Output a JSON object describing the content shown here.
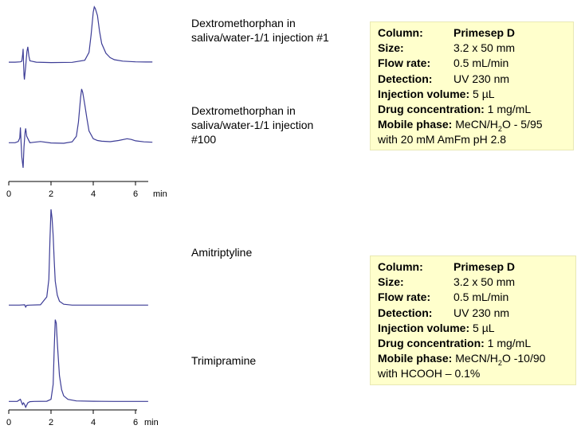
{
  "chart_data": [
    {
      "type": "line",
      "xlim": [
        0,
        6.8
      ],
      "xticks": [
        "0",
        "2",
        "4",
        "6"
      ],
      "xlabel": "min",
      "series": [
        {
          "name": "Dextromethorphan in saliva/water-1/1 injection #1",
          "x": [
            0,
            0.3,
            0.55,
            0.62,
            0.66,
            0.68,
            0.7,
            0.72,
            0.74,
            0.8,
            0.86,
            0.9,
            0.95,
            1.0,
            1.3,
            2.0,
            3.0,
            3.6,
            3.8,
            3.9,
            4.0,
            4.05,
            4.1,
            4.2,
            4.3,
            4.4,
            4.6,
            4.8,
            5.0,
            5.4,
            6.0,
            6.5,
            6.8
          ],
          "y": [
            0.4,
            0.4,
            0.6,
            1.0,
            5.0,
            8.0,
            1.0,
            -7.0,
            -9.5,
            -2.0,
            6.5,
            9.2,
            4.0,
            1.2,
            0.4,
            0.2,
            0.3,
            1.5,
            6.0,
            16.0,
            29.0,
            32.0,
            31.0,
            27.0,
            18.0,
            11.0,
            5.5,
            3.0,
            1.8,
            1.0,
            0.6,
            0.5,
            0.5
          ]
        },
        {
          "name": "Dextromethorphan in saliva/water-1/1 injection #100",
          "x": [
            0,
            0.3,
            0.45,
            0.52,
            0.55,
            0.58,
            0.62,
            0.68,
            0.72,
            0.77,
            0.8,
            0.85,
            1.0,
            1.2,
            1.5,
            2.0,
            2.6,
            3.0,
            3.2,
            3.3,
            3.4,
            3.45,
            3.5,
            3.6,
            3.7,
            3.8,
            4.0,
            4.2,
            4.4,
            4.8,
            5.2,
            5.6,
            5.8,
            6.0,
            6.4,
            6.8
          ],
          "y": [
            0.3,
            0.3,
            1.0,
            3.0,
            9.0,
            1.0,
            -8.0,
            -14.0,
            -2.0,
            6.0,
            8.5,
            4.0,
            0.3,
            0.6,
            1.0,
            0.2,
            0.0,
            0.8,
            4.0,
            12.0,
            26.0,
            31.0,
            29.0,
            22.0,
            14.0,
            7.0,
            2.6,
            1.6,
            1.2,
            0.9,
            1.6,
            2.6,
            2.2,
            1.4,
            0.8,
            0.6
          ]
        }
      ]
    },
    {
      "type": "line",
      "xlim": [
        0,
        6.8
      ],
      "xticks": [
        "0",
        "2",
        "4",
        "6"
      ],
      "xlabel": "min",
      "series": [
        {
          "name": "Amitriptyline",
          "x": [
            0,
            0.5,
            0.75,
            0.8,
            0.85,
            1.0,
            1.5,
            1.8,
            1.9,
            1.95,
            2.0,
            2.05,
            2.1,
            2.15,
            2.2,
            2.3,
            2.4,
            2.6,
            3.0,
            4.0,
            5.0,
            6.0,
            6.6
          ],
          "y": [
            0.3,
            0.3,
            0.5,
            -0.8,
            0.2,
            0.3,
            0.5,
            5.0,
            15.0,
            38.0,
            55.0,
            50.0,
            40.0,
            26.0,
            14.0,
            6.0,
            2.5,
            0.8,
            0.3,
            0.3,
            0.3,
            0.3,
            0.3
          ]
        },
        {
          "name": "Trimipramine",
          "x": [
            0,
            0.4,
            0.55,
            0.6,
            0.65,
            0.7,
            0.75,
            0.8,
            0.9,
            1.0,
            1.2,
            1.8,
            2.0,
            2.1,
            2.15,
            2.2,
            2.25,
            2.3,
            2.35,
            2.4,
            2.5,
            2.6,
            2.8,
            3.2,
            4.0,
            5.0,
            6.0,
            6.6
          ],
          "y": [
            0.3,
            0.3,
            1.5,
            0.0,
            -1.5,
            -0.5,
            -1.5,
            -3.0,
            -0.5,
            0.2,
            0.3,
            0.4,
            1.5,
            10.0,
            30.0,
            47.0,
            45.0,
            34.0,
            24.0,
            15.0,
            7.0,
            3.5,
            1.5,
            0.6,
            0.4,
            0.3,
            0.3,
            0.3
          ]
        }
      ]
    }
  ],
  "labels": {
    "dex1_line1": "Dextromethorphan in",
    "dex1_line2": "saliva/water-1/1 injection #1",
    "dex100_line1": "Dextromethorphan in",
    "dex100_line2": "saliva/water-1/1 injection",
    "dex100_line3": "#100",
    "amitriptyline": "Amitriptyline",
    "trimipramine": "Trimipramine"
  },
  "conditions_top": {
    "column_key": "Column:",
    "column_val": "Primesep D",
    "size_key": "Size:",
    "size_val": "3.2 x 50 mm",
    "flow_key": "Flow rate:",
    "flow_val": "0.5  mL/min",
    "det_key": "Detection:",
    "det_val": "UV 230 nm",
    "inj_key": "Injection volume:",
    "inj_val": "5 µL",
    "drug_key": "Drug concentration:",
    "drug_val": "1 mg/mL",
    "mp_key": "Mobile phase:",
    "mp_a": "MeCN/H",
    "mp_sub": "2",
    "mp_b": "O - 5/95",
    "mp_line2": "with 20 mM AmFm pH 2.8"
  },
  "conditions_bottom": {
    "column_key": "Column:",
    "column_val": "Primesep D",
    "size_key": "Size:",
    "size_val": "3.2 x 50 mm",
    "flow_key": "Flow rate:",
    "flow_val": "0.5 mL/min",
    "det_key": "Detection:",
    "det_val": "UV 230 nm",
    "inj_key": "Injection volume:",
    "inj_val": "5 µL",
    "drug_key": "Drug concentration:",
    "drug_val": "1 mg/mL",
    "mp_key": "Mobile phase:",
    "mp_a": "MeCN/H",
    "mp_sub": "2",
    "mp_b": "O -10/90",
    "mp_line2": "with HCOOH – 0.1%"
  },
  "colors": {
    "trace": "#3c3c96",
    "box_bg": "#ffffcc"
  }
}
